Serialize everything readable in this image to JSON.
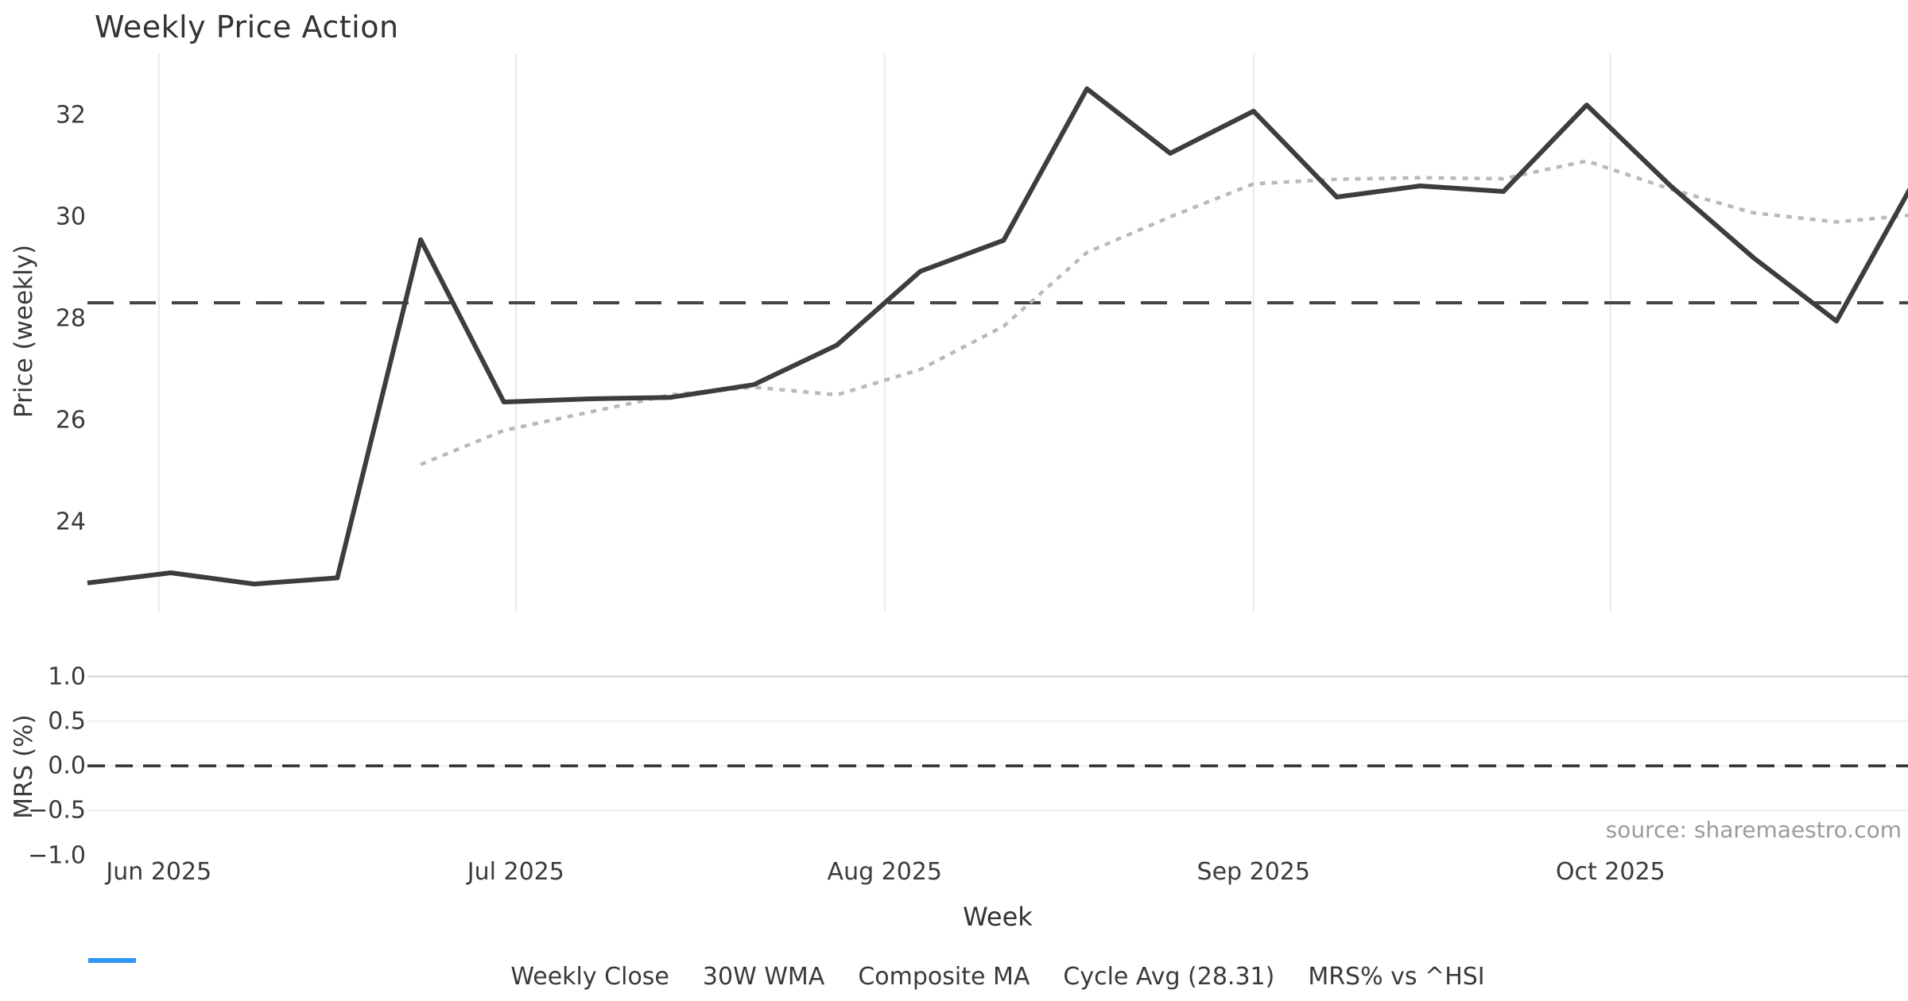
{
  "chart_data": {
    "type": "line",
    "title": "Weekly Price Action",
    "xlabel": "Week",
    "source_note": "source: sharemaestro.com",
    "price_panel": {
      "ylabel": "Price (weekly)",
      "yticks": [
        32,
        30,
        28,
        26,
        24
      ],
      "ytick_labels": [
        "32",
        "30",
        "28",
        "26",
        "24"
      ],
      "ylim": [
        22.2,
        33.3
      ],
      "grid": "vertical-months-only"
    },
    "mrs_panel": {
      "ylabel": "MRS (%)",
      "yticks": [
        1.0,
        0.5,
        0.0,
        -0.5,
        -1.0
      ],
      "ytick_labels": [
        "1.0",
        "0.5",
        "0.0",
        "−0.5",
        "−1.0"
      ],
      "gridline_values": [
        1.0,
        0.5,
        0.0,
        -0.5
      ],
      "zero_reference": {
        "value": 0.0,
        "style": "dashed"
      },
      "ylim": [
        -1.08,
        1.06
      ],
      "grid": "horizontal-only"
    },
    "month_ticks": [
      {
        "label": "Jun 2025",
        "day": 6
      },
      {
        "label": "Jul 2025",
        "day": 36
      },
      {
        "label": "Aug 2025",
        "day": 67
      },
      {
        "label": "Sep 2025",
        "day": 98
      },
      {
        "label": "Oct 2025",
        "day": 128
      }
    ],
    "x_weeks": [
      "2025-05-26",
      "2025-06-02",
      "2025-06-09",
      "2025-06-16",
      "2025-06-23",
      "2025-06-30",
      "2025-07-07",
      "2025-07-14",
      "2025-07-21",
      "2025-07-28",
      "2025-08-04",
      "2025-08-11",
      "2025-08-18",
      "2025-08-25",
      "2025-09-01",
      "2025-09-08",
      "2025-09-15",
      "2025-09-22",
      "2025-09-29",
      "2025-10-06",
      "2025-10-13",
      "2025-10-20",
      "2025-10-27"
    ],
    "series": [
      {
        "name": "Weekly Close",
        "style": "solid",
        "color": "#3d3d3d",
        "values": [
          22.8,
          23.0,
          22.78,
          22.9,
          29.55,
          26.36,
          26.42,
          26.45,
          26.7,
          27.48,
          28.93,
          29.54,
          32.52,
          31.25,
          32.08,
          30.39,
          30.61,
          30.5,
          32.2,
          30.62,
          29.2,
          27.95,
          30.9
        ]
      },
      {
        "name": "30W WMA",
        "style": "solid",
        "color": "#d4a72c",
        "values": null,
        "note": "legend entry only; no line visible in plotted range"
      },
      {
        "name": "Composite MA",
        "style": "dotted",
        "color": "#b9b9b9",
        "values": [
          null,
          null,
          null,
          null,
          25.13,
          25.8,
          26.15,
          26.5,
          26.65,
          26.5,
          27.0,
          27.85,
          29.3,
          30.0,
          30.65,
          30.74,
          30.77,
          30.75,
          31.1,
          30.55,
          30.08,
          29.9,
          30.05
        ]
      },
      {
        "name": "Cycle Avg (28.31)",
        "style": "dashed",
        "color": "#454545",
        "constant": 28.31
      },
      {
        "name": "MRS% vs ^HSI",
        "style": "solid",
        "color": "#2e96f5",
        "values": null,
        "note": "legend entry only; no blue line visible in MRS panel"
      }
    ],
    "legend": [
      {
        "label": "Weekly Close",
        "style": "solid",
        "color": "#3d3d3d"
      },
      {
        "label": "30W WMA",
        "style": "solid",
        "color": "#d4a72c"
      },
      {
        "label": "Composite MA",
        "style": "dotted",
        "color": "#b9b9b9"
      },
      {
        "label": "Cycle Avg (28.31)",
        "style": "dashed",
        "color": "#454545"
      },
      {
        "label": "MRS% vs ^HSI",
        "style": "solid",
        "color": "#2e96f5"
      }
    ],
    "legend_position": "bottom-center",
    "cycle_avg_value": 28.31
  },
  "colors": {
    "weekly_close": "#3d3d3d",
    "wma": "#d4a72c",
    "composite_ma": "#b9b9b9",
    "cycle_avg": "#454545",
    "mrs_blue": "#2e96f5",
    "grid_vertical": "#e8e8ed",
    "grid_light": "#efefef",
    "grid_top": "#cdcdcd",
    "zero_dash": "#2b2b2b",
    "text": "#3a3a3a",
    "source_text": "#9b9b9b",
    "background": "#ffffff"
  }
}
